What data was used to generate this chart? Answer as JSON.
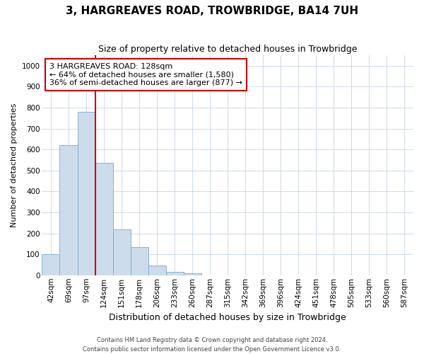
{
  "title": "3, HARGREAVES ROAD, TROWBRIDGE, BA14 7UH",
  "subtitle": "Size of property relative to detached houses in Trowbridge",
  "xlabel": "Distribution of detached houses by size in Trowbridge",
  "ylabel": "Number of detached properties",
  "footer_line1": "Contains HM Land Registry data © Crown copyright and database right 2024.",
  "footer_line2": "Contains public sector information licensed under the Open Government Licence v3.0.",
  "categories": [
    "42sqm",
    "69sqm",
    "97sqm",
    "124sqm",
    "151sqm",
    "178sqm",
    "206sqm",
    "233sqm",
    "260sqm",
    "287sqm",
    "315sqm",
    "342sqm",
    "369sqm",
    "396sqm",
    "424sqm",
    "451sqm",
    "478sqm",
    "505sqm",
    "533sqm",
    "560sqm",
    "587sqm"
  ],
  "values": [
    100,
    620,
    780,
    535,
    220,
    135,
    45,
    15,
    10,
    0,
    0,
    0,
    0,
    0,
    0,
    0,
    0,
    0,
    0,
    0,
    0
  ],
  "bar_color": "#ccdcec",
  "bar_edge_color": "#7aaac8",
  "red_line_index": 3,
  "red_line_color": "#cc0000",
  "annotation_line1": "3 HARGREAVES ROAD: 128sqm",
  "annotation_line2": "← 64% of detached houses are smaller (1,580)",
  "annotation_line3": "36% of semi-detached houses are larger (877) →",
  "annotation_box_color": "#cc0000",
  "ylim": [
    0,
    1050
  ],
  "yticks": [
    0,
    100,
    200,
    300,
    400,
    500,
    600,
    700,
    800,
    900,
    1000
  ],
  "bg_color": "#ffffff",
  "grid_color": "#c8d4e4",
  "title_fontsize": 11,
  "subtitle_fontsize": 9,
  "xlabel_fontsize": 9,
  "ylabel_fontsize": 8,
  "tick_fontsize": 7.5,
  "annotation_fontsize": 8,
  "footer_fontsize": 6
}
